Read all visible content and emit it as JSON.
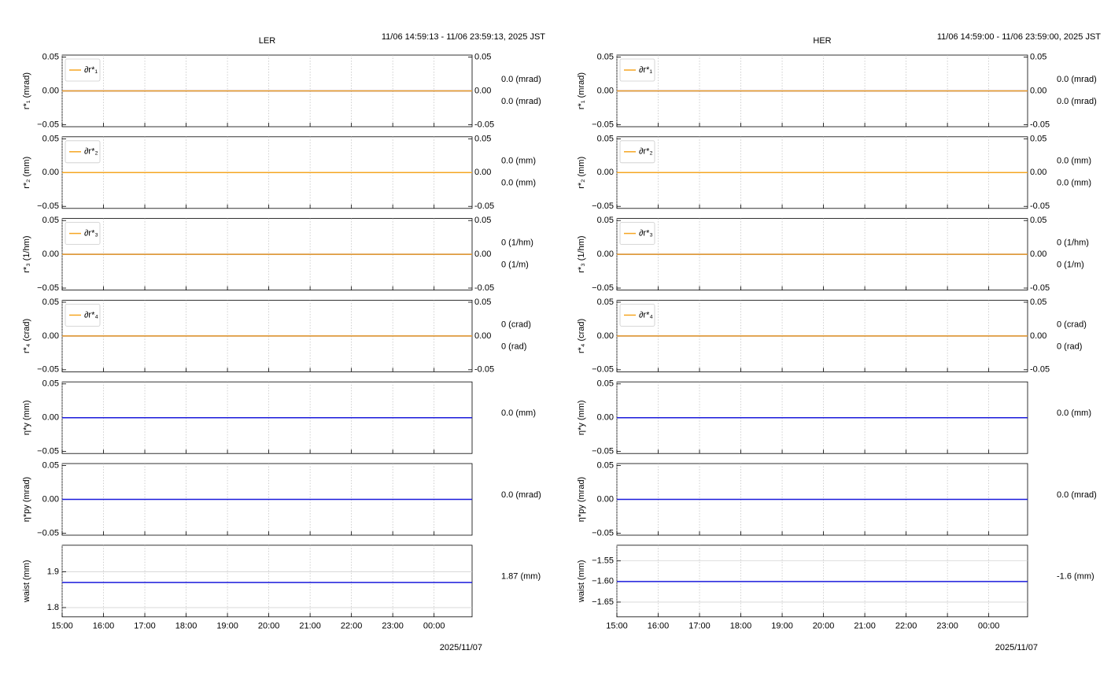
{
  "chart_data": [
    {
      "type": "line",
      "title": "LER",
      "subtitle": "11/06 14:59:13 - 11/06 23:59:13, 2025 JST",
      "ylabel": "r*₁ (mrad)",
      "x": [
        15,
        24.92
      ],
      "xlim": [
        15,
        24.92
      ],
      "xticks": [
        15,
        16,
        17,
        18,
        19,
        20,
        21,
        22,
        23,
        24
      ],
      "ylim": [
        -0.053,
        0.053
      ],
      "yticks": [
        {
          "value": -0.05,
          "label": "−0.05"
        },
        {
          "value": 0,
          "label": "0.00"
        },
        {
          "value": 0.05,
          "label": "0.05"
        }
      ],
      "y2lim": [
        -0.053,
        0.053
      ],
      "y2ticks": [
        {
          "value": -0.05,
          "label": "-0.05"
        },
        {
          "value": 0,
          "label": "0.00"
        },
        {
          "value": 0.05,
          "label": "0.05"
        }
      ],
      "grid": "x",
      "legend": "upper left",
      "series": [
        {
          "color": "#1a1adb",
          "values": [
            0,
            0
          ]
        },
        {
          "name": "∂r*₁",
          "color": "#f5a623",
          "axis": "y2",
          "values": [
            0,
            0
          ]
        }
      ],
      "annotations": [
        {
          "text": "0.0 (mrad)",
          "color": "#1a1adb"
        },
        {
          "text": "0.0 (mrad)",
          "color": "#f5a623"
        }
      ]
    },
    {
      "type": "line",
      "ylabel": "r*₂ (mm)",
      "x": [
        15,
        24.92
      ],
      "xlim": [
        15,
        24.92
      ],
      "xticks": [
        15,
        16,
        17,
        18,
        19,
        20,
        21,
        22,
        23,
        24
      ],
      "ylim": [
        -0.053,
        0.053
      ],
      "yticks": [
        {
          "value": -0.05,
          "label": "−0.05"
        },
        {
          "value": 0,
          "label": "0.00"
        },
        {
          "value": 0.05,
          "label": "0.05"
        }
      ],
      "y2lim": [
        -0.053,
        0.053
      ],
      "y2ticks": [
        {
          "value": -0.05,
          "label": "-0.05"
        },
        {
          "value": 0,
          "label": "0.00"
        },
        {
          "value": 0.05,
          "label": "0.05"
        }
      ],
      "grid": "x",
      "legend": "upper left",
      "series": [
        {
          "color": "#1a1adb",
          "values": [
            0,
            0
          ]
        },
        {
          "name": "∂r*₂",
          "color": "#f5a623",
          "axis": "y2",
          "values": [
            0,
            0
          ]
        }
      ],
      "annotations": [
        {
          "text": "0.0 (mm)",
          "color": "#1a1adb"
        },
        {
          "text": "0.0 (mm)",
          "color": "#f5a623"
        }
      ]
    },
    {
      "type": "line",
      "ylabel": "r*₃ (1/hm)",
      "x": [
        15,
        24.92
      ],
      "xlim": [
        15,
        24.92
      ],
      "xticks": [
        15,
        16,
        17,
        18,
        19,
        20,
        21,
        22,
        23,
        24
      ],
      "ylim": [
        -0.053,
        0.053
      ],
      "yticks": [
        {
          "value": -0.05,
          "label": "−0.05"
        },
        {
          "value": 0,
          "label": "0.00"
        },
        {
          "value": 0.05,
          "label": "0.05"
        }
      ],
      "y2lim": [
        -0.053,
        0.053
      ],
      "y2ticks": [
        {
          "value": -0.05,
          "label": "-0.05"
        },
        {
          "value": 0,
          "label": "0.00"
        },
        {
          "value": 0.05,
          "label": "0.05"
        }
      ],
      "grid": "x",
      "legend": "upper left",
      "series": [
        {
          "color": "#1a1adb",
          "values": [
            0,
            0
          ]
        },
        {
          "name": "∂r*₃",
          "color": "#f5a623",
          "axis": "y2",
          "values": [
            0,
            0
          ]
        }
      ],
      "annotations": [
        {
          "text": "0 (1/hm)",
          "color": "#1a1adb"
        },
        {
          "text": "0 (1/m)",
          "color": "#f5a623"
        }
      ]
    },
    {
      "type": "line",
      "ylabel": "r*₄ (crad)",
      "x": [
        15,
        24.92
      ],
      "xlim": [
        15,
        24.92
      ],
      "xticks": [
        15,
        16,
        17,
        18,
        19,
        20,
        21,
        22,
        23,
        24
      ],
      "ylim": [
        -0.053,
        0.053
      ],
      "yticks": [
        {
          "value": -0.05,
          "label": "−0.05"
        },
        {
          "value": 0,
          "label": "0.00"
        },
        {
          "value": 0.05,
          "label": "0.05"
        }
      ],
      "y2lim": [
        -0.053,
        0.053
      ],
      "y2ticks": [
        {
          "value": -0.05,
          "label": "-0.05"
        },
        {
          "value": 0,
          "label": "0.00"
        },
        {
          "value": 0.05,
          "label": "0.05"
        }
      ],
      "grid": "x",
      "legend": "upper left",
      "series": [
        {
          "color": "#1a1adb",
          "values": [
            0,
            0
          ]
        },
        {
          "name": "∂r*₄",
          "color": "#f5a623",
          "axis": "y2",
          "values": [
            0,
            0
          ]
        }
      ],
      "annotations": [
        {
          "text": "0 (crad)",
          "color": "#1a1adb"
        },
        {
          "text": "0 (rad)",
          "color": "#f5a623"
        }
      ]
    },
    {
      "type": "line",
      "ylabel": "η*y (mm)",
      "x": [
        15,
        24.92
      ],
      "xlim": [
        15,
        24.92
      ],
      "xticks": [
        15,
        16,
        17,
        18,
        19,
        20,
        21,
        22,
        23,
        24
      ],
      "ylim": [
        -0.053,
        0.053
      ],
      "yticks": [
        {
          "value": -0.05,
          "label": "−0.05"
        },
        {
          "value": 0,
          "label": "0.00"
        },
        {
          "value": 0.05,
          "label": "0.05"
        }
      ],
      "grid": "x",
      "series": [
        {
          "color": "#1a1adb",
          "values": [
            0,
            0
          ]
        }
      ],
      "annotations": [
        {
          "text": "0.0 (mm)",
          "color": "#1a1adb"
        }
      ]
    },
    {
      "type": "line",
      "ylabel": "η*py (mrad)",
      "x": [
        15,
        24.92
      ],
      "xlim": [
        15,
        24.92
      ],
      "xticks": [
        15,
        16,
        17,
        18,
        19,
        20,
        21,
        22,
        23,
        24
      ],
      "ylim": [
        -0.053,
        0.053
      ],
      "yticks": [
        {
          "value": -0.05,
          "label": "−0.05"
        },
        {
          "value": 0,
          "label": "0.00"
        },
        {
          "value": 0.05,
          "label": "0.05"
        }
      ],
      "grid": "x",
      "series": [
        {
          "color": "#1a1adb",
          "values": [
            0,
            0
          ]
        }
      ],
      "annotations": [
        {
          "text": "0.0 (mrad)",
          "color": "#1a1adb"
        }
      ]
    },
    {
      "type": "line",
      "ylabel": "waist (mm)",
      "xlabel": "2025/11/07",
      "x": [
        15,
        24.92
      ],
      "xlim": [
        15,
        24.92
      ],
      "xticks": [
        {
          "value": 15,
          "label": "15:00"
        },
        {
          "value": 16,
          "label": "16:00"
        },
        {
          "value": 17,
          "label": "17:00"
        },
        {
          "value": 18,
          "label": "18:00"
        },
        {
          "value": 19,
          "label": "19:00"
        },
        {
          "value": 20,
          "label": "20:00"
        },
        {
          "value": 21,
          "label": "21:00"
        },
        {
          "value": 22,
          "label": "22:00"
        },
        {
          "value": 23,
          "label": "23:00"
        },
        {
          "value": 24,
          "label": "00:00"
        }
      ],
      "ylim": [
        1.774,
        1.974
      ],
      "yticks": [
        1.8,
        1.9
      ],
      "grid": "both",
      "series": [
        {
          "color": "#1a1adb",
          "values": [
            1.87,
            1.87
          ]
        }
      ],
      "annotations": [
        {
          "text": "1.87 (mm)",
          "color": "#1a1adb"
        }
      ]
    },
    {
      "type": "line",
      "title": "HER",
      "subtitle": "11/06 14:59:00 - 11/06 23:59:00, 2025 JST",
      "ylabel": "r*₁ (mrad)",
      "x": [
        15,
        24.94
      ],
      "xlim": [
        15,
        24.94
      ],
      "xticks": [
        15,
        16,
        17,
        18,
        19,
        20,
        21,
        22,
        23,
        24
      ],
      "ylim": [
        -0.053,
        0.053
      ],
      "yticks": [
        {
          "value": -0.05,
          "label": "−0.05"
        },
        {
          "value": 0,
          "label": "0.00"
        },
        {
          "value": 0.05,
          "label": "0.05"
        }
      ],
      "y2lim": [
        -0.053,
        0.053
      ],
      "y2ticks": [
        {
          "value": -0.05,
          "label": "-0.05"
        },
        {
          "value": 0,
          "label": "0.00"
        },
        {
          "value": 0.05,
          "label": "0.05"
        }
      ],
      "grid": "x",
      "legend": "upper left",
      "series": [
        {
          "color": "#1a1adb",
          "values": [
            0,
            0
          ]
        },
        {
          "name": "∂r*₁",
          "color": "#f5a623",
          "axis": "y2",
          "values": [
            0,
            0
          ]
        }
      ],
      "annotations": [
        {
          "text": "0.0 (mrad)",
          "color": "#1a1adb"
        },
        {
          "text": "0.0 (mrad)",
          "color": "#f5a623"
        }
      ]
    },
    {
      "type": "line",
      "ylabel": "r*₂ (mm)",
      "x": [
        15,
        24.94
      ],
      "xlim": [
        15,
        24.94
      ],
      "xticks": [
        15,
        16,
        17,
        18,
        19,
        20,
        21,
        22,
        23,
        24
      ],
      "ylim": [
        -0.053,
        0.053
      ],
      "yticks": [
        {
          "value": -0.05,
          "label": "−0.05"
        },
        {
          "value": 0,
          "label": "0.00"
        },
        {
          "value": 0.05,
          "label": "0.05"
        }
      ],
      "y2lim": [
        -0.053,
        0.053
      ],
      "y2ticks": [
        {
          "value": -0.05,
          "label": "-0.05"
        },
        {
          "value": 0,
          "label": "0.00"
        },
        {
          "value": 0.05,
          "label": "0.05"
        }
      ],
      "grid": "x",
      "legend": "upper left",
      "series": [
        {
          "color": "#1a1adb",
          "values": [
            0,
            0
          ]
        },
        {
          "name": "∂r*₂",
          "color": "#f5a623",
          "axis": "y2",
          "values": [
            0,
            0
          ]
        }
      ],
      "annotations": [
        {
          "text": "0.0 (mm)",
          "color": "#1a1adb"
        },
        {
          "text": "0.0 (mm)",
          "color": "#f5a623"
        }
      ]
    },
    {
      "type": "line",
      "ylabel": "r*₃ (1/hm)",
      "x": [
        15,
        24.94
      ],
      "xlim": [
        15,
        24.94
      ],
      "xticks": [
        15,
        16,
        17,
        18,
        19,
        20,
        21,
        22,
        23,
        24
      ],
      "ylim": [
        -0.053,
        0.053
      ],
      "yticks": [
        {
          "value": -0.05,
          "label": "−0.05"
        },
        {
          "value": 0,
          "label": "0.00"
        },
        {
          "value": 0.05,
          "label": "0.05"
        }
      ],
      "y2lim": [
        -0.053,
        0.053
      ],
      "y2ticks": [
        {
          "value": -0.05,
          "label": "-0.05"
        },
        {
          "value": 0,
          "label": "0.00"
        },
        {
          "value": 0.05,
          "label": "0.05"
        }
      ],
      "grid": "x",
      "legend": "upper left",
      "series": [
        {
          "color": "#1a1adb",
          "values": [
            0,
            0
          ]
        },
        {
          "name": "∂r*₃",
          "color": "#f5a623",
          "axis": "y2",
          "values": [
            0,
            0
          ]
        }
      ],
      "annotations": [
        {
          "text": "0 (1/hm)",
          "color": "#1a1adb"
        },
        {
          "text": "0 (1/m)",
          "color": "#f5a623"
        }
      ]
    },
    {
      "type": "line",
      "ylabel": "r*₄ (crad)",
      "x": [
        15,
        24.94
      ],
      "xlim": [
        15,
        24.94
      ],
      "xticks": [
        15,
        16,
        17,
        18,
        19,
        20,
        21,
        22,
        23,
        24
      ],
      "ylim": [
        -0.053,
        0.053
      ],
      "yticks": [
        {
          "value": -0.05,
          "label": "−0.05"
        },
        {
          "value": 0,
          "label": "0.00"
        },
        {
          "value": 0.05,
          "label": "0.05"
        }
      ],
      "y2lim": [
        -0.053,
        0.053
      ],
      "y2ticks": [
        {
          "value": -0.05,
          "label": "-0.05"
        },
        {
          "value": 0,
          "label": "0.00"
        },
        {
          "value": 0.05,
          "label": "0.05"
        }
      ],
      "grid": "x",
      "legend": "upper left",
      "series": [
        {
          "color": "#1a1adb",
          "values": [
            0,
            0
          ]
        },
        {
          "name": "∂r*₄",
          "color": "#f5a623",
          "axis": "y2",
          "values": [
            0,
            0
          ]
        }
      ],
      "annotations": [
        {
          "text": "0 (crad)",
          "color": "#1a1adb"
        },
        {
          "text": "0 (rad)",
          "color": "#f5a623"
        }
      ]
    },
    {
      "type": "line",
      "ylabel": "η*y (mm)",
      "x": [
        15,
        24.94
      ],
      "xlim": [
        15,
        24.94
      ],
      "xticks": [
        15,
        16,
        17,
        18,
        19,
        20,
        21,
        22,
        23,
        24
      ],
      "ylim": [
        -0.053,
        0.053
      ],
      "yticks": [
        {
          "value": -0.05,
          "label": "−0.05"
        },
        {
          "value": 0,
          "label": "0.00"
        },
        {
          "value": 0.05,
          "label": "0.05"
        }
      ],
      "grid": "x",
      "series": [
        {
          "color": "#1a1adb",
          "values": [
            0,
            0
          ]
        }
      ],
      "annotations": [
        {
          "text": "0.0 (mm)",
          "color": "#1a1adb"
        }
      ]
    },
    {
      "type": "line",
      "ylabel": "η*py (mrad)",
      "x": [
        15,
        24.94
      ],
      "xlim": [
        15,
        24.94
      ],
      "xticks": [
        15,
        16,
        17,
        18,
        19,
        20,
        21,
        22,
        23,
        24
      ],
      "ylim": [
        -0.053,
        0.053
      ],
      "yticks": [
        {
          "value": -0.05,
          "label": "−0.05"
        },
        {
          "value": 0,
          "label": "0.00"
        },
        {
          "value": 0.05,
          "label": "0.05"
        }
      ],
      "grid": "x",
      "series": [
        {
          "color": "#1a1adb",
          "values": [
            0,
            0
          ]
        }
      ],
      "annotations": [
        {
          "text": "0.0 (mrad)",
          "color": "#1a1adb"
        }
      ]
    },
    {
      "type": "line",
      "ylabel": "waist (mm)",
      "xlabel": "2025/11/07",
      "x": [
        15,
        24.94
      ],
      "xlim": [
        15,
        24.94
      ],
      "xticks": [
        {
          "value": 15,
          "label": "15:00"
        },
        {
          "value": 16,
          "label": "16:00"
        },
        {
          "value": 17,
          "label": "17:00"
        },
        {
          "value": 18,
          "label": "18:00"
        },
        {
          "value": 19,
          "label": "19:00"
        },
        {
          "value": 20,
          "label": "20:00"
        },
        {
          "value": 21,
          "label": "21:00"
        },
        {
          "value": 22,
          "label": "22:00"
        },
        {
          "value": 23,
          "label": "23:00"
        },
        {
          "value": 24,
          "label": "00:00"
        }
      ],
      "ylim": [
        -1.686,
        -1.512
      ],
      "yticks": [
        {
          "value": -1.65,
          "label": "−1.65"
        },
        {
          "value": -1.6,
          "label": "−1.60"
        },
        {
          "value": -1.55,
          "label": "−1.55"
        }
      ],
      "grid": "both",
      "series": [
        {
          "color": "#1a1adb",
          "values": [
            -1.6,
            -1.6
          ]
        }
      ],
      "annotations": [
        {
          "text": "-1.6 (mm)",
          "color": "#1a1adb"
        }
      ]
    }
  ]
}
